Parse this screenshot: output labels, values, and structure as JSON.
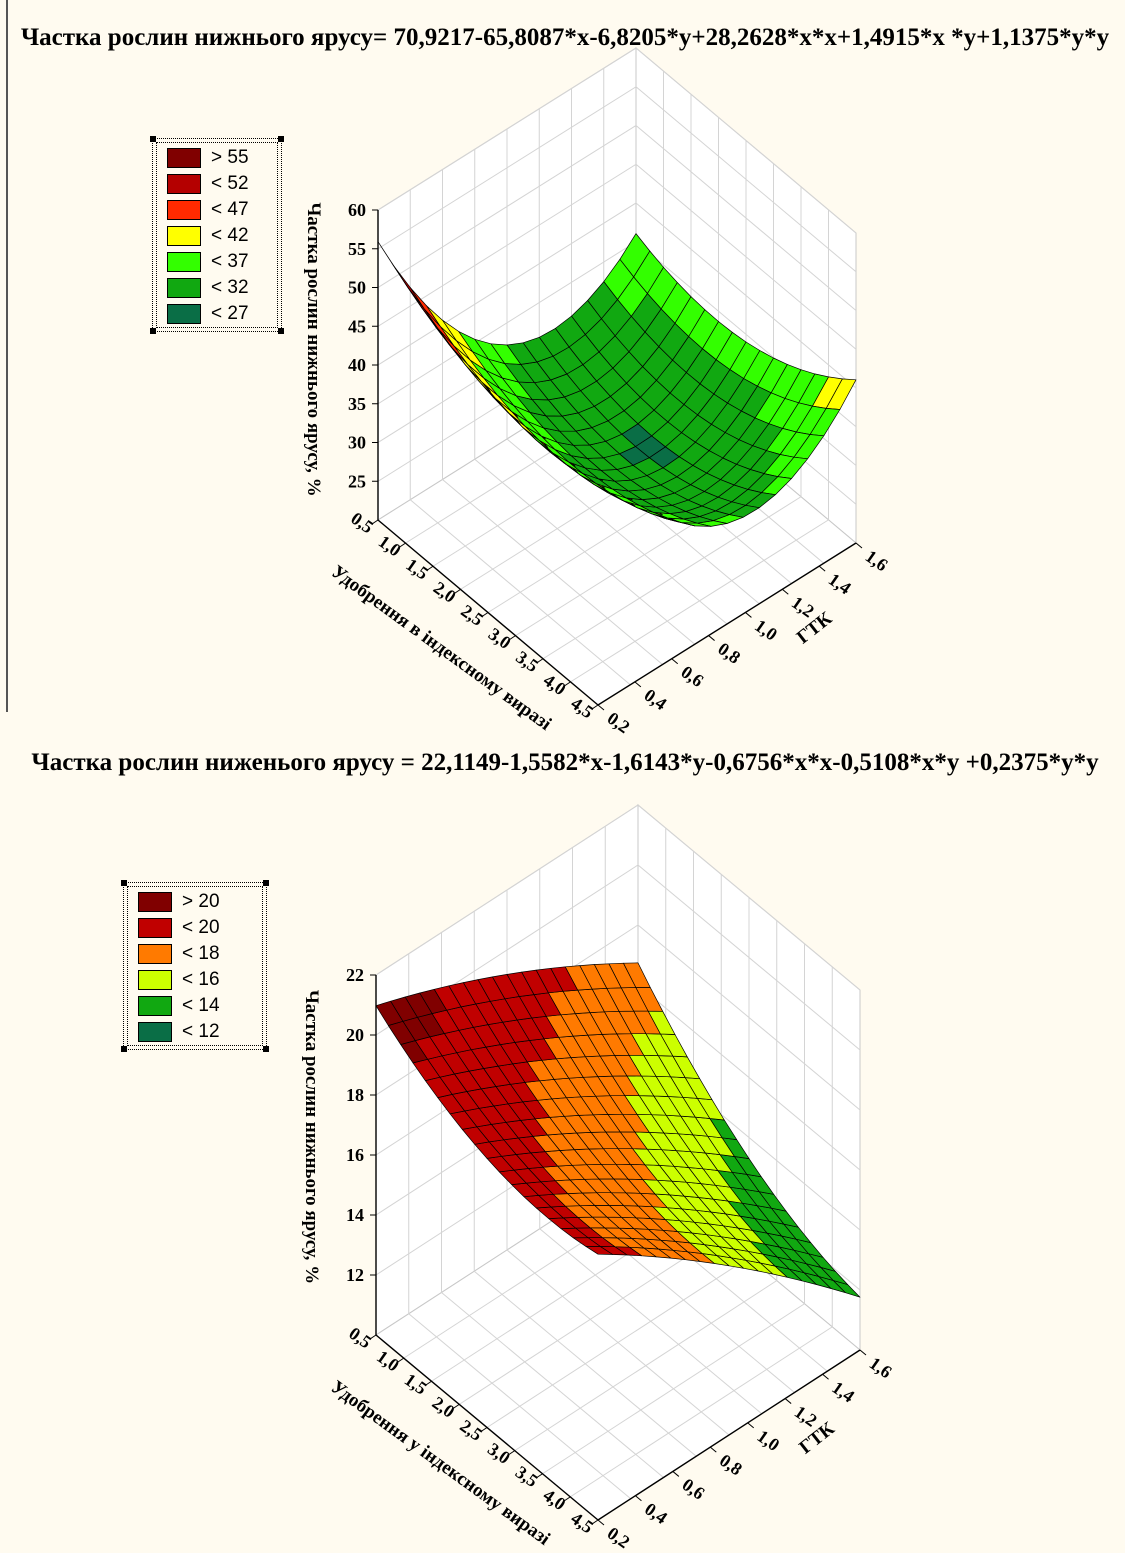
{
  "chart_data": [
    {
      "type": "surface3d",
      "title": "Частка рослин нижнього ярусу= 70,9217-65,8087*x-6,8205*y+28,2628*x*x+1,4915*x *y+1,1375*y*y",
      "equation": {
        "c0": 70.9217,
        "cx": -65.8087,
        "cy": -6.8205,
        "cxx": 28.2628,
        "cxy": 1.4915,
        "cyy": 1.1375
      },
      "zlabel": "Частка рослин нижнього ярусу, %",
      "ylabel": "Удобрення в індексному виразі",
      "xlabel": "ГТК",
      "x_ticks": [
        "0,2",
        "0,4",
        "0,6",
        "0,8",
        "1,0",
        "1,2",
        "1,4",
        "1,6"
      ],
      "y_ticks": [
        "0,5",
        "1,0",
        "1,5",
        "2,0",
        "2,5",
        "3,0",
        "3,5",
        "4,0",
        "4,5"
      ],
      "z_ticks": [
        "25",
        "30",
        "35",
        "40",
        "45",
        "50",
        "55",
        "60"
      ],
      "xlim": [
        0.2,
        1.6
      ],
      "ylim": [
        0.5,
        4.5
      ],
      "zlim": [
        20,
        60
      ],
      "legend": [
        {
          "label": "> 55",
          "color": "#800000"
        },
        {
          "label": "< 52",
          "color": "#b40000"
        },
        {
          "label": "< 47",
          "color": "#ff2a00"
        },
        {
          "label": "< 42",
          "color": "#ffff00"
        },
        {
          "label": "< 37",
          "color": "#33ff00"
        },
        {
          "label": "< 32",
          "color": "#11a811"
        },
        {
          "label": "< 27",
          "color": "#0a6e46"
        }
      ],
      "thresholds": [
        55,
        52,
        47,
        42,
        37,
        32,
        27
      ]
    },
    {
      "type": "surface3d",
      "title": "Частка рослин ниженього ярусу = 22,1149-1,5582*x-1,6143*y-0,6756*x*x-0,5108*x*y +0,2375*y*y",
      "equation": {
        "c0": 22.1149,
        "cx": -1.5582,
        "cy": -1.6143,
        "cxx": -0.6756,
        "cxy": -0.5108,
        "cyy": 0.2375
      },
      "zlabel": "Частка рослин нижнього ярусу, %",
      "ylabel": "Удобрення у індексному виразі",
      "xlabel": "ГТК",
      "x_ticks": [
        "0,2",
        "0,4",
        "0,6",
        "0,8",
        "1,0",
        "1,2",
        "1,4",
        "1,6"
      ],
      "y_ticks": [
        "0,5",
        "1,0",
        "1,5",
        "2,0",
        "2,5",
        "3,0",
        "3,5",
        "4,0",
        "4,5"
      ],
      "z_ticks": [
        "12",
        "14",
        "16",
        "18",
        "20",
        "22"
      ],
      "xlim": [
        0.2,
        1.6
      ],
      "ylim": [
        0.5,
        4.5
      ],
      "zlim": [
        10,
        22
      ],
      "legend": [
        {
          "label": "> 20",
          "color": "#800000"
        },
        {
          "label": "< 20",
          "color": "#c00000"
        },
        {
          "label": "< 18",
          "color": "#ff7a00"
        },
        {
          "label": "< 16",
          "color": "#ccff00"
        },
        {
          "label": "< 14",
          "color": "#11a811"
        },
        {
          "label": "< 12",
          "color": "#0a6e46"
        }
      ],
      "thresholds": [
        20,
        20,
        18,
        16,
        14,
        12
      ]
    }
  ]
}
